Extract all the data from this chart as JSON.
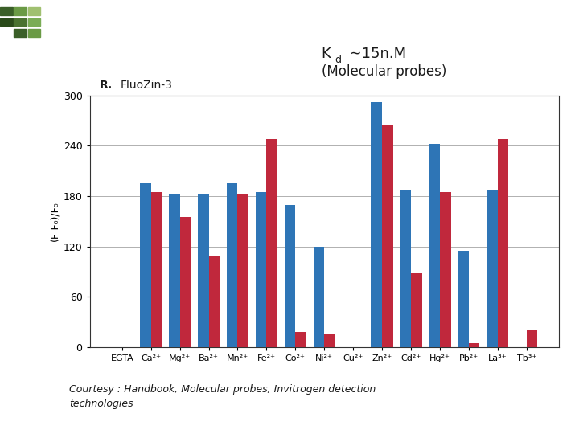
{
  "title_line1": "K",
  "title_sub": "d",
  "title_rest": "  ∼15n.M",
  "title_line2": "(Molecular probes)",
  "chart_label_bold": "R.",
  "chart_label_normal": " FluoZin-3",
  "ylabel": "(F-F₀)/F₀",
  "categories": [
    "EGTA",
    "Ca²⁺",
    "Mg²⁺",
    "Ba²⁺",
    "Mn²⁺",
    "Fe²⁺",
    "Co²⁺",
    "Ni²⁺",
    "Cu²⁺",
    "Zn²⁺",
    "Cd²⁺",
    "Hg²⁺",
    "Pb²⁺",
    "La³⁺",
    "Tb³⁺"
  ],
  "blue_values": [
    0,
    195,
    183,
    183,
    195,
    185,
    170,
    120,
    0,
    292,
    188,
    242,
    115,
    187,
    0
  ],
  "red_values": [
    0,
    185,
    155,
    108,
    183,
    248,
    18,
    15,
    0,
    265,
    88,
    185,
    5,
    248,
    20
  ],
  "blue_color": "#2e75b6",
  "red_color": "#c0283c",
  "ylim": [
    0,
    300
  ],
  "yticks": [
    0,
    60,
    120,
    180,
    240,
    300
  ],
  "background_color": "#ffffff",
  "footnote_line1": "Courtesy : Handbook, Molecular probes, Invitrogen detection",
  "footnote_line2": "technologies",
  "grid_color": "#b0b0b0",
  "bar_width": 0.38
}
